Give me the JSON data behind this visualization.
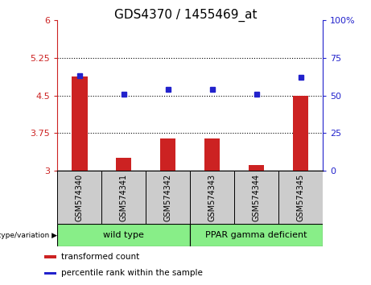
{
  "title": "GDS4370 / 1455469_at",
  "samples": [
    "GSM574340",
    "GSM574341",
    "GSM574342",
    "GSM574343",
    "GSM574344",
    "GSM574345"
  ],
  "bar_values": [
    4.88,
    3.27,
    3.65,
    3.65,
    3.12,
    4.5
  ],
  "bar_bottom": [
    3.0,
    3.0,
    3.0,
    3.0,
    3.0,
    3.0
  ],
  "percentile_values": [
    63,
    51,
    54,
    54,
    51,
    62
  ],
  "bar_color": "#cc2222",
  "marker_color": "#2222cc",
  "ylim_left": [
    3.0,
    6.0
  ],
  "ylim_right": [
    0,
    100
  ],
  "yticks_left": [
    3.0,
    3.75,
    4.5,
    5.25,
    6.0
  ],
  "yticks_right": [
    0,
    25,
    50,
    75,
    100
  ],
  "ytick_labels_left": [
    "3",
    "3.75",
    "4.5",
    "5.25",
    "6"
  ],
  "ytick_labels_right": [
    "0",
    "25",
    "50",
    "75",
    "100%"
  ],
  "hlines": [
    3.75,
    4.5,
    5.25
  ],
  "groups": [
    {
      "label": "wild type",
      "start": 0,
      "end": 3
    },
    {
      "label": "PPAR gamma deficient",
      "start": 3,
      "end": 6
    }
  ],
  "group_color": "#88ee88",
  "xlabel_left": "genotype/variation",
  "legend_items": [
    "transformed count",
    "percentile rank within the sample"
  ],
  "legend_colors": [
    "#cc2222",
    "#2222cc"
  ],
  "label_area_bg": "#cccccc",
  "title_fontsize": 11
}
